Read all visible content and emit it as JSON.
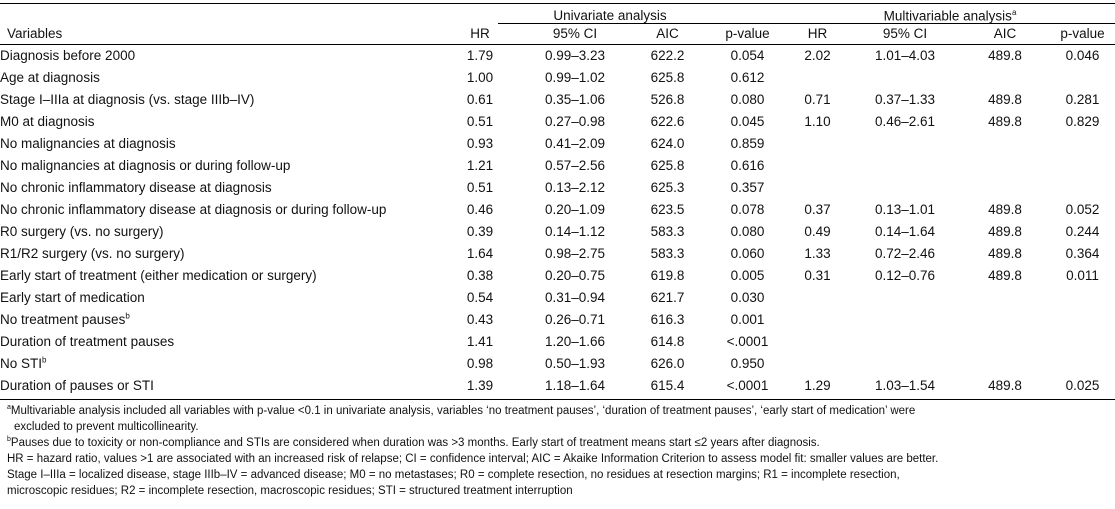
{
  "table": {
    "group_headers": {
      "univariate": "Univariate analysis",
      "multivariable": "Multivariable analysis",
      "multivariable_sup": "a"
    },
    "column_headers": {
      "variables": "Variables",
      "uni_hr": "HR",
      "uni_ci": "95% CI",
      "uni_aic": "AIC",
      "uni_p": "p-value",
      "multi_hr": "HR",
      "multi_ci": "95% CI",
      "multi_aic": "AIC",
      "multi_p": "p-value"
    },
    "rows": [
      {
        "variable": "Diagnosis before 2000",
        "sup": "",
        "uni_hr": "1.79",
        "uni_ci": "0.99–3.23",
        "uni_aic": "622.2",
        "uni_p": "0.054",
        "multi_hr": "2.02",
        "multi_ci": "1.01–4.03",
        "multi_aic": "489.8",
        "multi_p": "0.046"
      },
      {
        "variable": "Age at diagnosis",
        "sup": "",
        "uni_hr": "1.00",
        "uni_ci": "0.99–1.02",
        "uni_aic": "625.8",
        "uni_p": "0.612",
        "multi_hr": "",
        "multi_ci": "",
        "multi_aic": "",
        "multi_p": ""
      },
      {
        "variable": "Stage I–IIIa at diagnosis (vs. stage IIIb–IV)",
        "sup": "",
        "uni_hr": "0.61",
        "uni_ci": "0.35–1.06",
        "uni_aic": "526.8",
        "uni_p": "0.080",
        "multi_hr": "0.71",
        "multi_ci": "0.37–1.33",
        "multi_aic": "489.8",
        "multi_p": "0.281"
      },
      {
        "variable": "M0 at diagnosis",
        "sup": "",
        "uni_hr": "0.51",
        "uni_ci": "0.27–0.98",
        "uni_aic": "622.6",
        "uni_p": "0.045",
        "multi_hr": "1.10",
        "multi_ci": "0.46–2.61",
        "multi_aic": "489.8",
        "multi_p": "0.829"
      },
      {
        "variable": "No malignancies at diagnosis",
        "sup": "",
        "uni_hr": "0.93",
        "uni_ci": "0.41–2.09",
        "uni_aic": "624.0",
        "uni_p": "0.859",
        "multi_hr": "",
        "multi_ci": "",
        "multi_aic": "",
        "multi_p": ""
      },
      {
        "variable": "No malignancies at diagnosis or during follow-up",
        "sup": "",
        "uni_hr": "1.21",
        "uni_ci": "0.57–2.56",
        "uni_aic": "625.8",
        "uni_p": "0.616",
        "multi_hr": "",
        "multi_ci": "",
        "multi_aic": "",
        "multi_p": ""
      },
      {
        "variable": "No chronic inflammatory disease at diagnosis",
        "sup": "",
        "uni_hr": "0.51",
        "uni_ci": "0.13–2.12",
        "uni_aic": "625.3",
        "uni_p": "0.357",
        "multi_hr": "",
        "multi_ci": "",
        "multi_aic": "",
        "multi_p": ""
      },
      {
        "variable": "No chronic inflammatory disease at diagnosis or during follow-up",
        "sup": "",
        "uni_hr": "0.46",
        "uni_ci": "0.20–1.09",
        "uni_aic": "623.5",
        "uni_p": "0.078",
        "multi_hr": "0.37",
        "multi_ci": "0.13–1.01",
        "multi_aic": "489.8",
        "multi_p": "0.052"
      },
      {
        "variable": "R0 surgery (vs. no surgery)",
        "sup": "",
        "uni_hr": "0.39",
        "uni_ci": "0.14–1.12",
        "uni_aic": "583.3",
        "uni_p": "0.080",
        "multi_hr": "0.49",
        "multi_ci": "0.14–1.64",
        "multi_aic": "489.8",
        "multi_p": "0.244"
      },
      {
        "variable": "R1/R2 surgery (vs. no surgery)",
        "sup": "",
        "uni_hr": "1.64",
        "uni_ci": "0.98–2.75",
        "uni_aic": "583.3",
        "uni_p": "0.060",
        "multi_hr": "1.33",
        "multi_ci": "0.72–2.46",
        "multi_aic": "489.8",
        "multi_p": "0.364"
      },
      {
        "variable": "Early start of treatment (either medication or surgery)",
        "sup": "",
        "uni_hr": "0.38",
        "uni_ci": "0.20–0.75",
        "uni_aic": "619.8",
        "uni_p": "0.005",
        "multi_hr": "0.31",
        "multi_ci": "0.12–0.76",
        "multi_aic": "489.8",
        "multi_p": "0.011"
      },
      {
        "variable": "Early start of medication",
        "sup": "",
        "uni_hr": "0.54",
        "uni_ci": "0.31–0.94",
        "uni_aic": "621.7",
        "uni_p": "0.030",
        "multi_hr": "",
        "multi_ci": "",
        "multi_aic": "",
        "multi_p": ""
      },
      {
        "variable": "No treatment pauses",
        "sup": "b",
        "uni_hr": "0.43",
        "uni_ci": "0.26–0.71",
        "uni_aic": "616.3",
        "uni_p": "0.001",
        "multi_hr": "",
        "multi_ci": "",
        "multi_aic": "",
        "multi_p": ""
      },
      {
        "variable": "Duration of treatment pauses",
        "sup": "",
        "uni_hr": "1.41",
        "uni_ci": "1.20–1.66",
        "uni_aic": "614.8",
        "uni_p": "<.0001",
        "multi_hr": "",
        "multi_ci": "",
        "multi_aic": "",
        "multi_p": ""
      },
      {
        "variable": "No STI",
        "sup": "b",
        "uni_hr": "0.98",
        "uni_ci": "0.50–1.93",
        "uni_aic": "626.0",
        "uni_p": "0.950",
        "multi_hr": "",
        "multi_ci": "",
        "multi_aic": "",
        "multi_p": ""
      },
      {
        "variable": "Duration of pauses or STI",
        "sup": "",
        "uni_hr": "1.39",
        "uni_ci": "1.18–1.64",
        "uni_aic": "615.4",
        "uni_p": "<.0001",
        "multi_hr": "1.29",
        "multi_ci": "1.03–1.54",
        "multi_aic": "489.8",
        "multi_p": "0.025"
      }
    ]
  },
  "footnotes": {
    "a_mark": "a",
    "a_text": "Multivariable analysis included all variables with p-value <0.1 in univariate analysis, variables ‘no treatment pauses’, ‘duration of treatment pauses’, ‘early start of medication’ were",
    "a_text_cont": "excluded to prevent multicollinearity.",
    "b_mark": "b",
    "b_text": "Pauses due to toxicity or non-compliance and STIs are considered when duration was >3 months. Early start of treatment means start ≤2 years after diagnosis.",
    "abbr_1": "HR = hazard ratio, values >1 are associated with an increased risk of relapse; CI = confidence interval; AIC = Akaike Information Criterion to assess model fit: smaller values are better.",
    "abbr_2": "Stage I–IIIa = localized disease, stage IIIb–IV = advanced disease; M0 = no metastases; R0 = complete resection, no residues at resection margins; R1 = incomplete resection,",
    "abbr_3": "microscopic residues; R2 = incomplete resection, macroscopic residues; STI = structured treatment interruption"
  }
}
